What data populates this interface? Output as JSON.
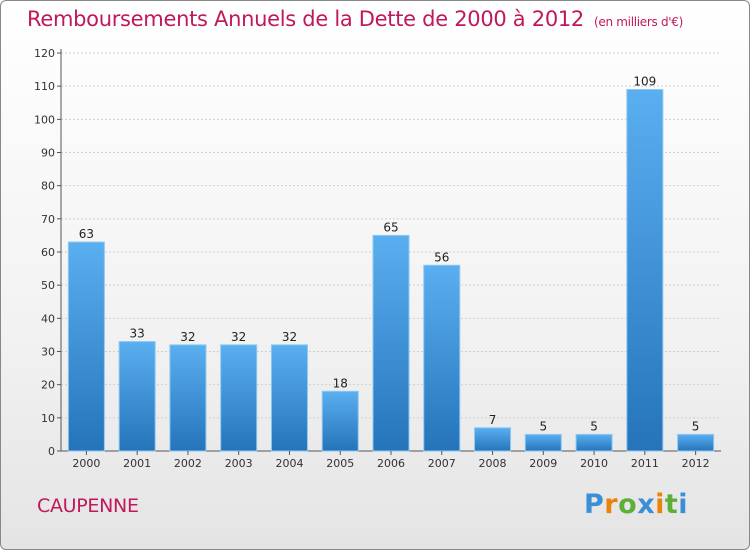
{
  "title": "Remboursements Annuels de la Dette de 2000 à 2012",
  "subtitle": "(en milliers d'€)",
  "commune": "CAUPENNE",
  "logo": {
    "text": "Proxiti",
    "letters": [
      "P",
      "r",
      "o",
      "x",
      "i",
      "t",
      "i"
    ],
    "colors": [
      "#3a8fd6",
      "#e8830c",
      "#5cb038",
      "#3a8fd6",
      "#e8830c",
      "#5cb038",
      "#3a8fd6"
    ]
  },
  "colors": {
    "title": "#c0185d",
    "bar_top": "#5aaff0",
    "bar_bottom": "#2574ba"
  },
  "chart_data": {
    "type": "bar",
    "title": "Remboursements Annuels de la Dette de 2000 à 2012",
    "xlabel": "",
    "ylabel": "",
    "categories": [
      "2000",
      "2001",
      "2002",
      "2003",
      "2004",
      "2005",
      "2006",
      "2007",
      "2008",
      "2009",
      "2010",
      "2011",
      "2012"
    ],
    "values": [
      63,
      33,
      32,
      32,
      32,
      18,
      65,
      56,
      7,
      5,
      5,
      109,
      5
    ],
    "ylim": [
      0,
      120
    ],
    "yticks": [
      0,
      10,
      20,
      30,
      40,
      50,
      60,
      70,
      80,
      90,
      100,
      110,
      120
    ],
    "grid": true
  }
}
